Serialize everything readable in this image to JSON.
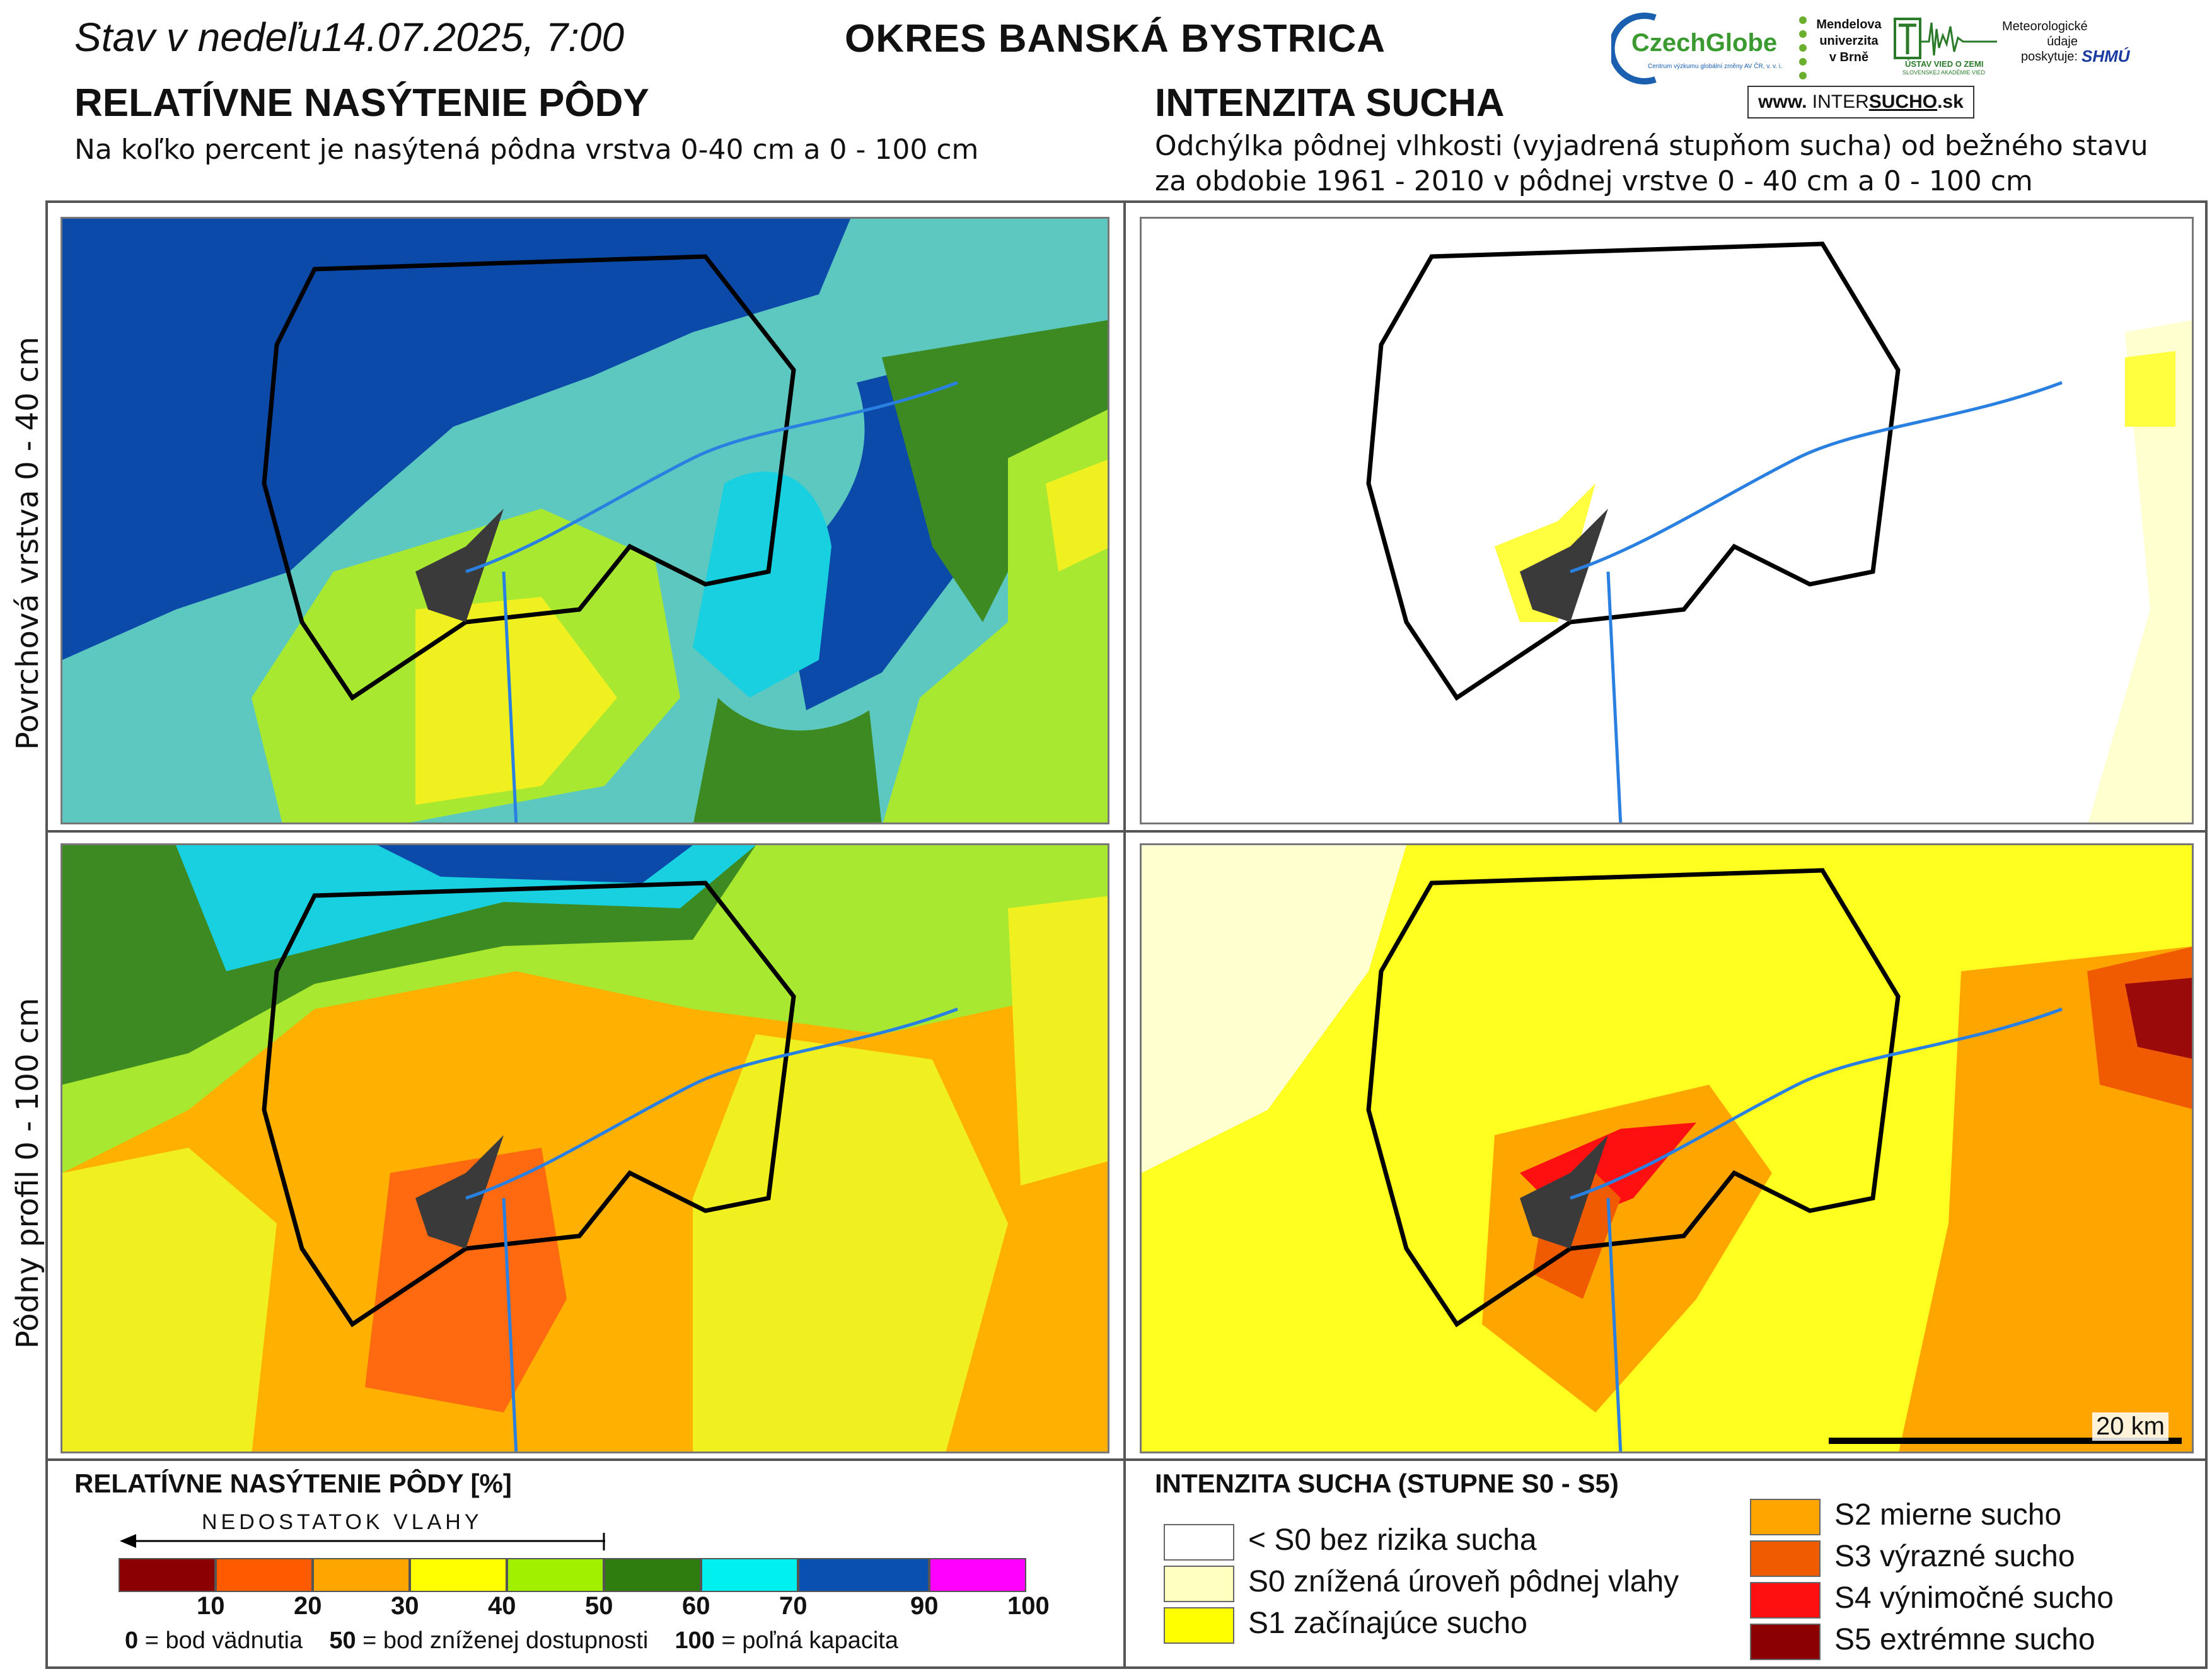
{
  "header": {
    "date_prefix": "Stav v nedeľu",
    "date_value": "14.07.2025, 7:00",
    "district": "OKRES  BANSKÁ BYSTRICA"
  },
  "left": {
    "title": "RELATÍVNE NASÝTENIE PÔDY",
    "subtitle": "Na koľko percent je nasýtená pôdna vrstva 0-40 cm a 0 - 100 cm"
  },
  "right": {
    "title": "INTENZITA SUCHA",
    "subtitle_line1": "Odchýlka pôdnej vlhkosti (vyjadrená stupňom sucha) od bežného stavu",
    "subtitle_line2": "za obdobie 1961 - 2010 v pôdnej vrstve 0 - 40 cm a 0 - 100 cm"
  },
  "logos": {
    "czechglobe": "CzechGlobe",
    "czechglobe_sub": "Centrum výzkumu globální změny AV ČR, v. v. i.",
    "mendel": "Mendelova univerzita v Brně",
    "uvz": "ÚSTAV VIED O ZEMI",
    "uvz_sub": "SLOVENSKEJ AKADÉMIE VIED",
    "meteo": "Meteorologické údaje poskytuje:",
    "shmu": "SHMÚ",
    "www_prefix": "www.",
    "www_a": "INTER",
    "www_b": "SUCHO",
    "www_c": ".sk"
  },
  "row_labels": {
    "top": "Povrchová vrstva 0 - 40 cm",
    "bottom": "Pôdny profil 0 - 100 cm"
  },
  "scale_bar": "20 km",
  "legend_saturation": {
    "title": "RELATÍVNE NASÝTENIE PÔDY [%]",
    "arrow_label": "NEDOSTATOK VLAHY",
    "bins": [
      {
        "color": "#8b0000"
      },
      {
        "color": "#ff5a00"
      },
      {
        "color": "#ffa500"
      },
      {
        "color": "#ffff00"
      },
      {
        "color": "#a0f000"
      },
      {
        "color": "#2e7d0e"
      },
      {
        "color": "#00f0f0"
      },
      {
        "color": "#0a50b0"
      },
      {
        "color": "#ff00ff"
      }
    ],
    "ticks": [
      "10",
      "20",
      "30",
      "40",
      "50",
      "60",
      "70",
      "90",
      "100"
    ],
    "footnote": {
      "a_num": "0",
      "a_text": " = bod vädnutia",
      "b_num": "50",
      "b_text": " = bod zníženej dostupnosti",
      "c_num": "100",
      "c_text": " = poľná kapacita"
    }
  },
  "legend_drought": {
    "title": "INTENZITA SUCHA (STUPNE S0 - S5)",
    "items": [
      {
        "label": "< S0 bez rizika sucha",
        "color": "#ffffff"
      },
      {
        "label": "S0 znížená úroveň pôdnej vlahy",
        "color": "#ffffc0"
      },
      {
        "label": "S1 začínajúce sucho",
        "color": "#ffff00"
      },
      {
        "label": "S2 mierne sucho",
        "color": "#ffa500"
      },
      {
        "label": "S3 výrazné sucho",
        "color": "#f05a00"
      },
      {
        "label": "S4 výnimočné sucho",
        "color": "#ff1010"
      },
      {
        "label": "S5 extrémne sucho",
        "color": "#8b0000"
      }
    ]
  }
}
